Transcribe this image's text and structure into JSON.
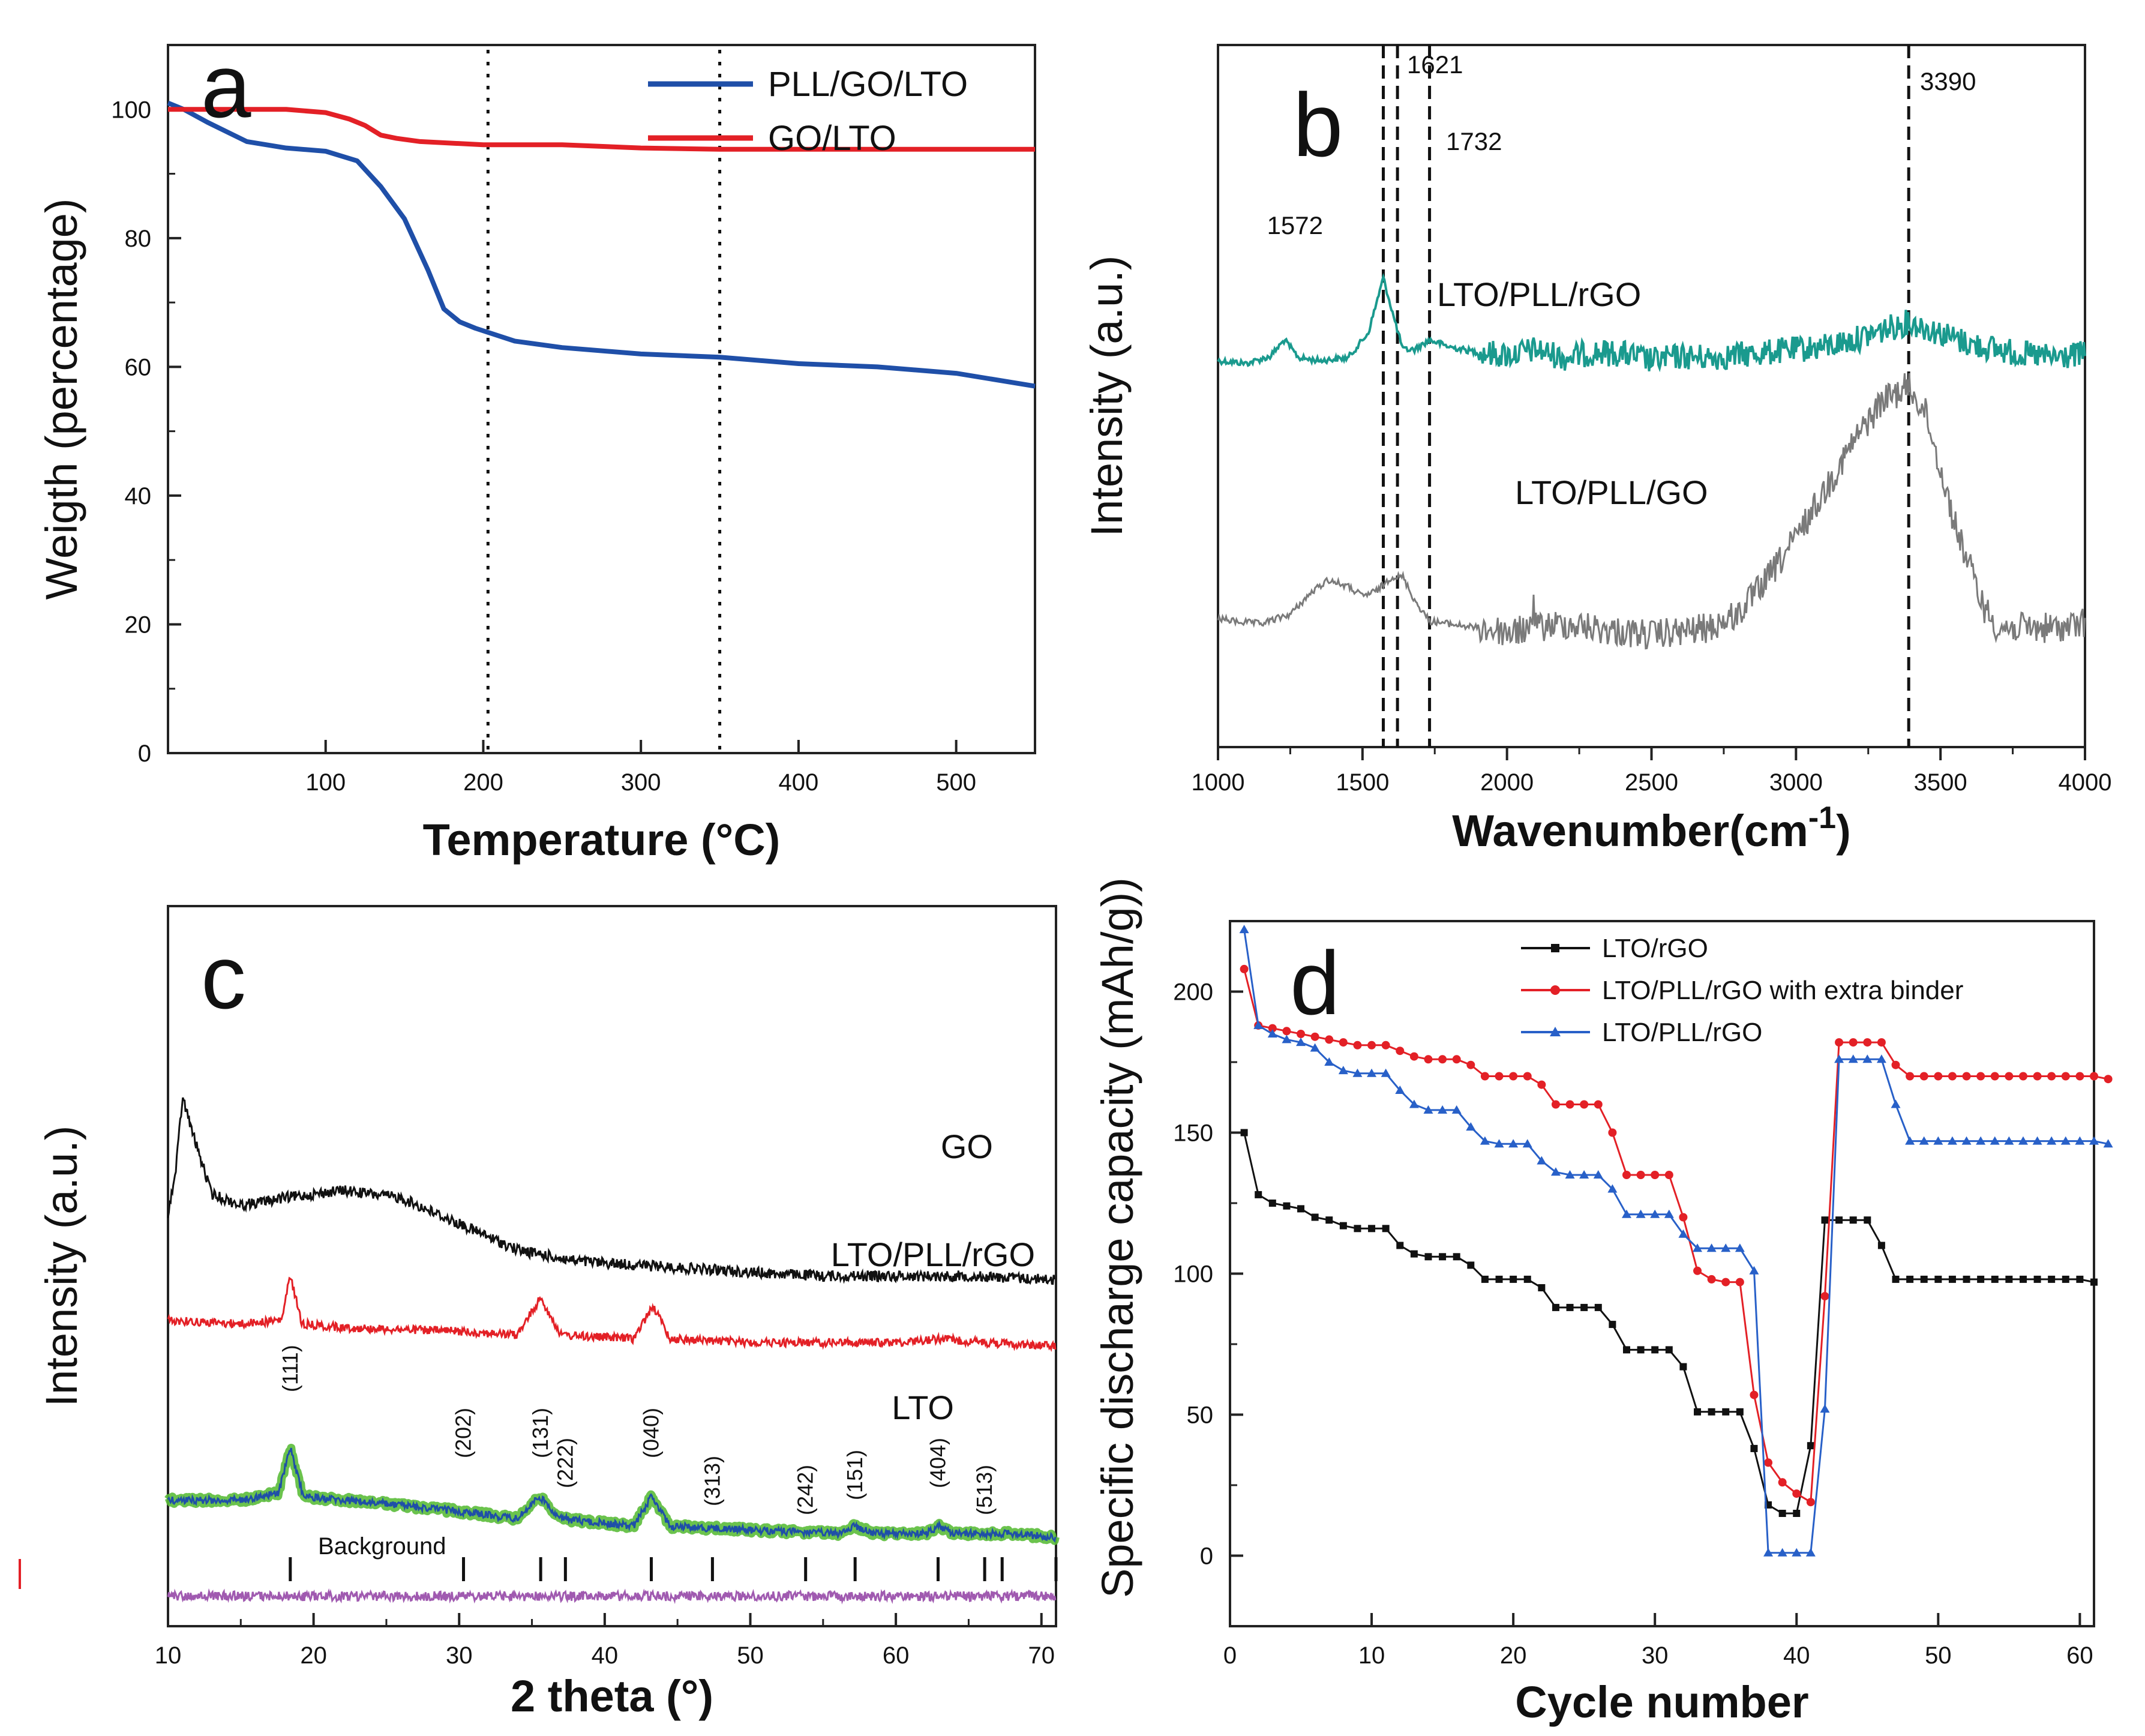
{
  "chart_data": [
    {
      "panel": "a",
      "type": "line",
      "panel_letter": "a",
      "xlabel": "Temperature (°C)",
      "ylabel": "Weigth (percentage)",
      "xlim": [
        0,
        550
      ],
      "ylim": [
        0,
        110
      ],
      "xticks": [
        100,
        200,
        300,
        400,
        500
      ],
      "yticks": [
        0,
        20,
        40,
        60,
        80,
        100
      ],
      "grid": false,
      "legend_position": "top-right",
      "reference_lines": [
        {
          "x": 203,
          "style": "dotted"
        },
        {
          "x": 350,
          "style": "dotted"
        }
      ],
      "series": [
        {
          "name": "PLL/GO/LTO",
          "color": "#1f4fa8",
          "x": [
            0,
            10,
            25,
            50,
            75,
            100,
            120,
            135,
            150,
            165,
            175,
            185,
            195,
            220,
            250,
            300,
            350,
            400,
            450,
            500,
            550
          ],
          "y": [
            101,
            100,
            98,
            95,
            94,
            93.5,
            92,
            88,
            83,
            75,
            69,
            67,
            66,
            64,
            63,
            62,
            61.5,
            60.5,
            60,
            59,
            57
          ]
        },
        {
          "name": "GO/LTO",
          "color": "#e32026",
          "x": [
            0,
            25,
            50,
            75,
            100,
            115,
            125,
            135,
            145,
            160,
            200,
            250,
            300,
            350,
            400,
            450,
            500,
            550
          ],
          "y": [
            100,
            100,
            100,
            100,
            99.5,
            98.5,
            97.5,
            96,
            95.5,
            95,
            94.5,
            94.5,
            94,
            93.8,
            93.8,
            93.8,
            93.8,
            93.8
          ]
        }
      ]
    },
    {
      "panel": "b",
      "type": "line",
      "panel_letter": "b",
      "xlabel": "Wavenumber(cm",
      "xlabel_sup": "-1",
      "xlabel_end": ")",
      "ylabel": "Intensity (a.u.)",
      "xlim": [
        1000,
        4000
      ],
      "xticks": [
        1000,
        1500,
        2000,
        2500,
        3000,
        3500,
        4000
      ],
      "grid": false,
      "peak_lines": [
        {
          "x": 1572,
          "label": "1572"
        },
        {
          "x": 1621,
          "label": "1621"
        },
        {
          "x": 1732,
          "label": "1732"
        },
        {
          "x": 3390,
          "label": "3390"
        }
      ],
      "series": [
        {
          "name": "LTO/PLL/rGO",
          "color": "#1a9a8e",
          "x": [
            1000,
            1100,
            1180,
            1230,
            1280,
            1350,
            1450,
            1520,
            1572,
            1610,
            1640,
            1680,
            1732,
            1800,
            1900,
            2000,
            2100,
            2200,
            2300,
            2400,
            2500,
            2600,
            2700,
            2800,
            2900,
            3000,
            3100,
            3200,
            3300,
            3390,
            3500,
            3600,
            3700,
            3800,
            3900,
            4000
          ],
          "y": [
            30,
            28,
            33,
            45,
            32,
            30,
            32,
            50,
            90,
            60,
            38,
            38,
            45,
            40,
            36,
            34,
            38,
            32,
            36,
            35,
            30,
            33,
            32,
            34,
            36,
            38,
            40,
            45,
            52,
            58,
            50,
            42,
            38,
            34,
            32,
            35
          ]
        },
        {
          "name": "LTO/PLL/GO",
          "color": "#7a7a7a",
          "x": [
            1000,
            1050,
            1150,
            1250,
            1320,
            1380,
            1450,
            1500,
            1550,
            1600,
            1640,
            1680,
            1732,
            1800,
            1900,
            2000,
            2100,
            2200,
            2300,
            2400,
            2500,
            2600,
            2700,
            2800,
            2900,
            3000,
            3100,
            3200,
            3300,
            3390,
            3450,
            3550,
            3650,
            3700,
            3800,
            3900,
            4000
          ],
          "y": [
            -48,
            -50,
            -52,
            -45,
            -30,
            -20,
            -25,
            -32,
            -28,
            -18,
            -18,
            -35,
            -50,
            -52,
            -55,
            -58,
            -55,
            -52,
            -55,
            -58,
            -60,
            -58,
            -55,
            -45,
            -20,
            10,
            45,
            80,
            110,
            120,
            100,
            20,
            -40,
            -55,
            -55,
            -55,
            -52
          ]
        }
      ]
    },
    {
      "panel": "c",
      "type": "line",
      "panel_letter": "c",
      "xlabel": "2 theta (°)",
      "ylabel": "Intensity (a.u.)",
      "xlim": [
        10,
        71
      ],
      "xticks": [
        10,
        20,
        30,
        40,
        50,
        60,
        70
      ],
      "grid": false,
      "series": [
        {
          "name": "GO",
          "color": "#111111",
          "x": [
            10,
            10.5,
            11,
            11.8,
            13,
            15,
            18,
            22,
            26,
            30,
            34,
            38,
            42,
            46,
            50,
            55,
            60,
            65,
            71
          ],
          "y": [
            -5,
            5,
            26,
            15,
            0,
            -3,
            -1,
            1,
            -1,
            -8,
            -15,
            -18,
            -19,
            -20,
            -21,
            -22,
            -22,
            -22,
            -23
          ]
        },
        {
          "name": "LTO/PLL/rGO",
          "color": "#e32026",
          "x": [
            10,
            15,
            17.8,
            18.4,
            19.2,
            22,
            30,
            34,
            35.6,
            37,
            42,
            43.3,
            44.5,
            50,
            57,
            60,
            63,
            66,
            71
          ],
          "y": [
            0,
            -1,
            0,
            12,
            -1,
            -2,
            -3,
            -4,
            6,
            -4,
            -5,
            4,
            -5,
            -6,
            -6,
            -6,
            -5,
            -6,
            -7
          ]
        },
        {
          "name": "LTO",
          "color": "#1f4fa8",
          "x": [
            10,
            15,
            17.6,
            18.4,
            19.3,
            22,
            25,
            30,
            34,
            35.5,
            37,
            42,
            43.2,
            44.5,
            50,
            56,
            57.2,
            58.5,
            62,
            63,
            64,
            68,
            71
          ],
          "y": [
            0,
            0,
            2,
            14,
            1,
            0,
            -1,
            -3,
            -5,
            1,
            -5,
            -7,
            1,
            -7,
            -8,
            -9,
            -7,
            -9,
            -9,
            -7,
            -9,
            -9,
            -10
          ]
        },
        {
          "name": "Background",
          "color": "#a05ab0",
          "x": [
            10,
            20,
            30,
            40,
            50,
            60,
            71
          ],
          "y": [
            0,
            0,
            0,
            0,
            0,
            0,
            0
          ]
        }
      ],
      "curve_labels": [
        "GO",
        "LTO/PLL/rGO",
        "LTO",
        "Background"
      ],
      "reflections": [
        {
          "x": 18.4,
          "label": "(111)"
        },
        {
          "x": 30.3,
          "label": "(202)"
        },
        {
          "x": 35.6,
          "label": "(131)"
        },
        {
          "x": 37.3,
          "label": "(222)"
        },
        {
          "x": 43.2,
          "label": "(040)"
        },
        {
          "x": 47.4,
          "label": "(313)"
        },
        {
          "x": 53.8,
          "label": "(242)"
        },
        {
          "x": 57.2,
          "label": "(151)"
        },
        {
          "x": 62.9,
          "label": "(404)"
        },
        {
          "x": 66.1,
          "label": "(513)"
        }
      ],
      "extra_ticks": [
        67.3,
        71
      ]
    },
    {
      "panel": "d",
      "type": "line",
      "panel_letter": "d",
      "xlabel": "Cycle number",
      "ylabel": "Specific discharge capacity (mAh/g))",
      "xlim": [
        0,
        61
      ],
      "ylim": [
        -25,
        225
      ],
      "xticks": [
        0,
        10,
        20,
        30,
        40,
        50,
        60
      ],
      "yticks": [
        0,
        50,
        100,
        150,
        200
      ],
      "grid": false,
      "legend_position": "top-center",
      "series": [
        {
          "name": "LTO/rGO",
          "color": "#111111",
          "marker": "square",
          "y": [
            150,
            128,
            125,
            124,
            123,
            120,
            119,
            117,
            116,
            116,
            116,
            110,
            107,
            106,
            106,
            106,
            103,
            98,
            98,
            98,
            98,
            95,
            88,
            88,
            88,
            88,
            82,
            73,
            73,
            73,
            73,
            67,
            51,
            51,
            51,
            51,
            38,
            18,
            15,
            15,
            39,
            119,
            119,
            119,
            119,
            110,
            98,
            98,
            98,
            98,
            98,
            98,
            98,
            98,
            98,
            98,
            98,
            98,
            98,
            98,
            97
          ]
        },
        {
          "name": "LTO/PLL/rGO with extra binder",
          "color": "#e32026",
          "marker": "circle",
          "y": [
            208,
            188,
            187,
            186,
            185,
            184,
            183,
            182,
            181,
            181,
            181,
            179,
            177,
            176,
            176,
            176,
            174,
            170,
            170,
            170,
            170,
            167,
            160,
            160,
            160,
            160,
            150,
            135,
            135,
            135,
            135,
            120,
            101,
            98,
            97,
            97,
            57,
            33,
            26,
            22,
            19,
            92,
            182,
            182,
            182,
            182,
            174,
            170,
            170,
            170,
            170,
            170,
            170,
            170,
            170,
            170,
            170,
            170,
            170,
            170,
            170,
            169
          ]
        },
        {
          "name": "LTO/PLL/rGO",
          "color": "#2860c8",
          "marker": "triangle",
          "y": [
            222,
            188,
            185,
            183,
            182,
            180,
            175,
            172,
            171,
            171,
            171,
            165,
            160,
            158,
            158,
            158,
            152,
            147,
            146,
            146,
            146,
            140,
            136,
            135,
            135,
            135,
            130,
            121,
            121,
            121,
            121,
            114,
            109,
            109,
            109,
            109,
            101,
            1,
            1,
            1,
            1,
            52,
            176,
            176,
            176,
            176,
            160,
            147,
            147,
            147,
            147,
            147,
            147,
            147,
            147,
            147,
            147,
            147,
            147,
            147,
            147,
            146
          ]
        }
      ]
    }
  ]
}
